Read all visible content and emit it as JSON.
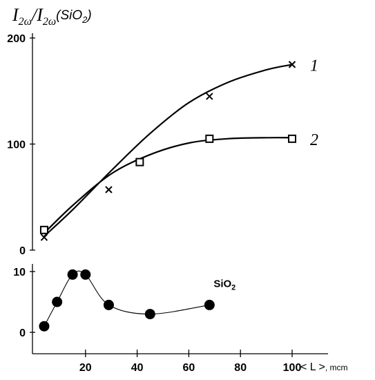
{
  "chart_data": [
    {
      "type": "line",
      "ylabel": {
        "prefix": "I",
        "sub1": "2ω",
        "slash": "/I",
        "sub2": "2ω",
        "suffix": "(SiO",
        "sub3": "2",
        "close": ")"
      },
      "xlim": [
        0,
        100
      ],
      "ylim": [
        0,
        200
      ],
      "y_ticks": [
        0,
        100,
        200
      ],
      "grid": false,
      "series": [
        {
          "name": "1",
          "marker": "x",
          "x": [
            4,
            29,
            68,
            100
          ],
          "y": [
            12,
            57,
            145,
            175
          ],
          "curve": [
            [
              4,
              13
            ],
            [
              15,
              38
            ],
            [
              30,
              75
            ],
            [
              45,
              110
            ],
            [
              60,
              139
            ],
            [
              75,
              158
            ],
            [
              90,
              170
            ],
            [
              100,
              175
            ]
          ]
        },
        {
          "name": "2",
          "marker": "square",
          "x": [
            4,
            41,
            68,
            100
          ],
          "y": [
            19,
            83,
            105,
            105
          ],
          "curve": [
            [
              4,
              16
            ],
            [
              15,
              42
            ],
            [
              30,
              72
            ],
            [
              45,
              90
            ],
            [
              60,
              101
            ],
            [
              75,
              105
            ],
            [
              90,
              106
            ],
            [
              100,
              106
            ]
          ]
        }
      ]
    },
    {
      "type": "line",
      "xlabel": "< L >",
      "xunit": ", mcm",
      "xlim": [
        0,
        100
      ],
      "ylim": [
        0,
        10
      ],
      "x_ticks": [
        20,
        40,
        60,
        80,
        100
      ],
      "y_ticks": [
        0,
        10
      ],
      "grid": false,
      "series": [
        {
          "name": "SiO2",
          "name_base": "SiO",
          "name_sub": "2",
          "marker": "filled-circle",
          "x": [
            4,
            9,
            15,
            20,
            29,
            45,
            68
          ],
          "y": [
            1,
            5,
            9.5,
            9.5,
            4.5,
            3,
            4.5
          ]
        }
      ]
    }
  ],
  "colors": {
    "line": "#000000",
    "background": "#ffffff"
  }
}
